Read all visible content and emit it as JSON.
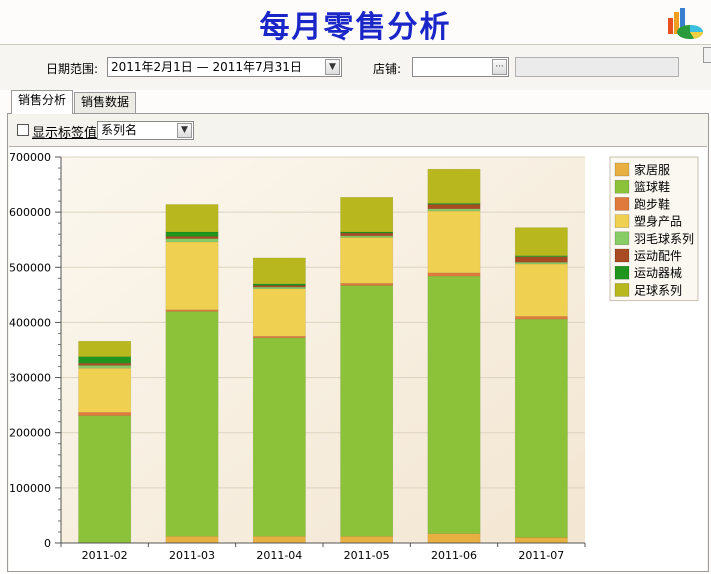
{
  "title": "每月零售分析",
  "filters": {
    "date_label": "日期范围:",
    "date_value": "2011年2月1日 — 2011年7月31日",
    "store_label": "店铺:",
    "store_value": "",
    "store_name": ""
  },
  "tabs": [
    {
      "label": "销售分析",
      "active": true
    },
    {
      "label": "销售数据",
      "active": false
    }
  ],
  "options": {
    "show_labels": "显示标签值",
    "show_labels_checked": false,
    "label_mode": "系列名"
  },
  "icons": {
    "logo": "chart-logo-icon",
    "date_dropdown": "chevron-down-icon",
    "store_picker": "ellipsis-icon",
    "label_dropdown": "chevron-down-icon"
  },
  "chart_data": {
    "type": "bar",
    "stacked": true,
    "categories": [
      "2011-02",
      "2011-03",
      "2011-04",
      "2011-05",
      "2011-06",
      "2011-07"
    ],
    "ylim": [
      0,
      700000
    ],
    "yticks": [
      0,
      100000,
      200000,
      300000,
      400000,
      500000,
      600000,
      700000
    ],
    "grid": true,
    "legend_position": "top-right",
    "series": [
      {
        "name": "家居服",
        "color": "#e8b040",
        "values": [
          1000,
          12000,
          12000,
          12000,
          17000,
          10000
        ]
      },
      {
        "name": "篮球鞋",
        "color": "#8cc23a",
        "values": [
          230000,
          408000,
          360000,
          455000,
          467000,
          396000
        ]
      },
      {
        "name": "跑步鞋",
        "color": "#e07a3c",
        "values": [
          6000,
          3000,
          3000,
          4000,
          6000,
          5000
        ]
      },
      {
        "name": "塑身产品",
        "color": "#f0d050",
        "values": [
          80000,
          123000,
          86000,
          83000,
          112000,
          95000
        ]
      },
      {
        "name": "羽毛球系列",
        "color": "#88cc66",
        "values": [
          5000,
          6000,
          3000,
          3000,
          4000,
          3000
        ]
      },
      {
        "name": "运动配件",
        "color": "#a84a22",
        "values": [
          4000,
          4000,
          3000,
          5000,
          8000,
          10000
        ]
      },
      {
        "name": "运动器械",
        "color": "#20951e",
        "values": [
          12000,
          8000,
          3000,
          2000,
          2000,
          2000
        ]
      },
      {
        "name": "足球系列",
        "color": "#b8b81e",
        "values": [
          28000,
          50000,
          47000,
          63000,
          62000,
          51000
        ]
      }
    ]
  }
}
